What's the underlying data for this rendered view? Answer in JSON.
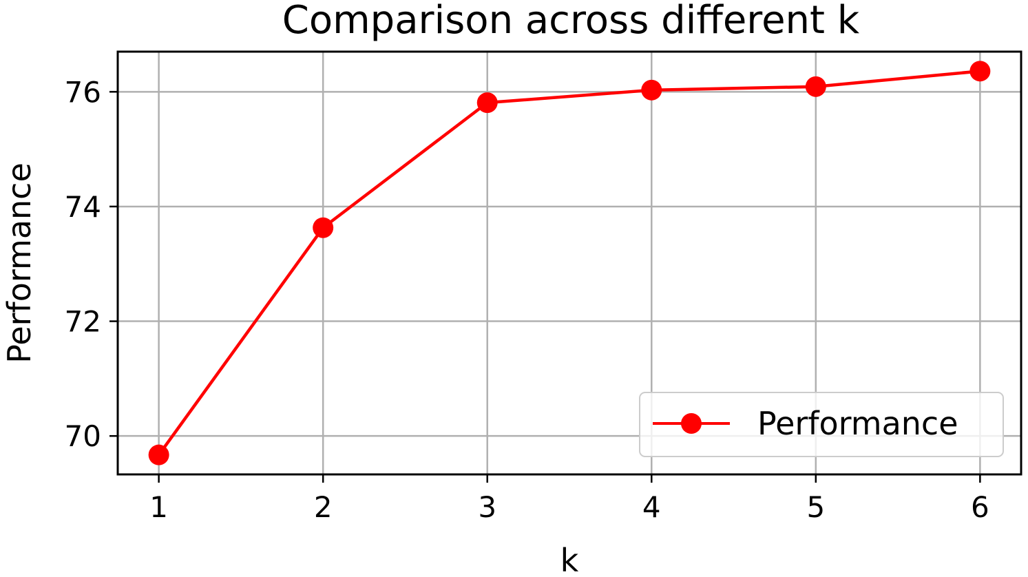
{
  "chart_data": {
    "type": "line",
    "title": "Comparison across different k",
    "xlabel": "k",
    "ylabel": "Performance",
    "x": [
      1,
      2,
      3,
      4,
      5,
      6
    ],
    "series": [
      {
        "name": "Performance",
        "values": [
          69.67,
          73.63,
          75.81,
          76.03,
          76.09,
          76.36
        ],
        "color": "#ff0000",
        "marker": "circle"
      }
    ],
    "xticks": [
      "1",
      "2",
      "3",
      "4",
      "5",
      "6"
    ],
    "yticks": [
      "70",
      "72",
      "74",
      "76"
    ],
    "ytick_values": [
      70,
      72,
      74,
      76
    ],
    "xlim": [
      0.75,
      6.25
    ],
    "ylim": [
      69.33,
      76.7
    ],
    "grid": true,
    "legend_position": "lower-right"
  }
}
